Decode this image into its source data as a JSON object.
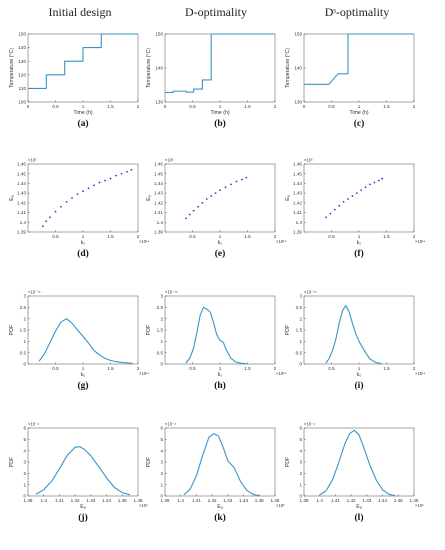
{
  "column_titles": [
    "Initial design",
    "D-optimality",
    "Dˢ-optimality"
  ],
  "chart_data": [
    {
      "id": "a",
      "panel_label": "(a)",
      "type": "line",
      "style": "step",
      "color": "#3a93c8",
      "xlabel": "Time (h)",
      "ylabel": "Temperature (°C)",
      "xlim": [
        0,
        2
      ],
      "ylim": [
        100,
        150
      ],
      "xticks": [
        0,
        0.5,
        1,
        1.5,
        2
      ],
      "xtick_labels": [
        "0",
        "0.5",
        "1",
        "1.5",
        "2"
      ],
      "yticks": [
        100,
        110,
        120,
        130,
        140,
        150
      ],
      "ytick_labels": [
        "100",
        "110",
        "120",
        "130",
        "140",
        "150"
      ],
      "x": [
        0,
        0.333,
        0.333,
        0.667,
        0.667,
        1.0,
        1.0,
        1.333,
        1.333,
        2.0
      ],
      "y": [
        110,
        110,
        120,
        120,
        130,
        130,
        140,
        140,
        150,
        150
      ]
    },
    {
      "id": "b",
      "panel_label": "(b)",
      "type": "line",
      "style": "step",
      "color": "#3a93c8",
      "xlabel": "Time (h)",
      "ylabel": "Temperature (°C)",
      "xlim": [
        0,
        2
      ],
      "ylim": [
        130,
        150
      ],
      "xticks": [
        0,
        0.5,
        1,
        1.5,
        2
      ],
      "xtick_labels": [
        "0",
        "0.5",
        "1",
        "1.5",
        "2"
      ],
      "yticks": [
        130,
        140,
        150
      ],
      "ytick_labels": [
        "130",
        "140",
        "150"
      ],
      "x": [
        0,
        0.15,
        0.15,
        0.38,
        0.38,
        0.52,
        0.52,
        0.68,
        0.68,
        0.84,
        0.84,
        2.0
      ],
      "y": [
        132.8,
        132.8,
        133.2,
        133.2,
        132.9,
        132.9,
        133.8,
        133.8,
        136.5,
        136.5,
        150,
        150
      ]
    },
    {
      "id": "c",
      "panel_label": "(c)",
      "type": "line",
      "style": "step",
      "color": "#3a93c8",
      "xlabel": "Time (h)",
      "ylabel": "Temperature (°C)",
      "xlim": [
        0,
        2
      ],
      "ylim": [
        130,
        150
      ],
      "xticks": [
        0,
        0.5,
        1,
        1.5,
        2
      ],
      "xtick_labels": [
        "0",
        "0.5",
        "1",
        "1.5",
        "2"
      ],
      "yticks": [
        130,
        140,
        150
      ],
      "ytick_labels": [
        "130",
        "140",
        "150"
      ],
      "x": [
        0,
        0.45,
        0.45,
        0.62,
        0.62,
        0.8,
        0.8,
        2.0
      ],
      "y": [
        135.2,
        135.2,
        135.2,
        138.3,
        138.3,
        138.3,
        150,
        150
      ]
    },
    {
      "id": "d",
      "panel_label": "(d)",
      "type": "scatter",
      "color": "#3b3bc8",
      "xlabel": "k₀",
      "ylabel": "Eₐ",
      "x_exponent": "×10¹⁴",
      "y_exponent": "×10⁵",
      "xlim": [
        0,
        2
      ],
      "ylim": [
        1.39,
        1.46
      ],
      "xticks": [
        0.5,
        1,
        1.5,
        2
      ],
      "xtick_labels": [
        "0.5",
        "1",
        "1.5",
        "2"
      ],
      "yticks": [
        1.39,
        1.4,
        1.41,
        1.42,
        1.43,
        1.44,
        1.45,
        1.46
      ],
      "ytick_labels": [
        "1.39",
        "1.4",
        "1.41",
        "1.42",
        "1.43",
        "1.44",
        "1.45",
        "1.46"
      ],
      "x": [
        0.27,
        0.33,
        0.4,
        0.5,
        0.6,
        0.7,
        0.8,
        0.9,
        1.0,
        1.1,
        1.2,
        1.3,
        1.4,
        1.5,
        1.6,
        1.7,
        1.8,
        1.88
      ],
      "y": [
        1.396,
        1.401,
        1.405,
        1.411,
        1.416,
        1.421,
        1.425,
        1.429,
        1.432,
        1.435,
        1.438,
        1.441,
        1.443,
        1.445,
        1.448,
        1.45,
        1.452,
        1.454
      ]
    },
    {
      "id": "e",
      "panel_label": "(e)",
      "type": "scatter",
      "color": "#3b3bc8",
      "xlabel": "k₀",
      "ylabel": "Eₐ",
      "x_exponent": "×10¹⁴",
      "y_exponent": "×10⁵",
      "xlim": [
        0,
        2
      ],
      "ylim": [
        1.39,
        1.46
      ],
      "xticks": [
        0.5,
        1,
        1.5,
        2
      ],
      "xtick_labels": [
        "0.5",
        "1",
        "1.5",
        "2"
      ],
      "yticks": [
        1.39,
        1.4,
        1.41,
        1.42,
        1.43,
        1.44,
        1.45,
        1.46
      ],
      "ytick_labels": [
        "1.39",
        "1.4",
        "1.41",
        "1.42",
        "1.43",
        "1.44",
        "1.45",
        "1.46"
      ],
      "x": [
        0.38,
        0.45,
        0.52,
        0.6,
        0.68,
        0.76,
        0.84,
        0.92,
        1.0,
        1.1,
        1.2,
        1.3,
        1.4,
        1.48
      ],
      "y": [
        1.404,
        1.408,
        1.412,
        1.416,
        1.42,
        1.424,
        1.427,
        1.43,
        1.433,
        1.436,
        1.439,
        1.442,
        1.444,
        1.446
      ]
    },
    {
      "id": "f",
      "panel_label": "(f)",
      "type": "scatter",
      "color": "#3b3bc8",
      "xlabel": "k₀",
      "ylabel": "Eₐ",
      "x_exponent": "×10¹⁴",
      "y_exponent": "×10⁵",
      "xlim": [
        0,
        2
      ],
      "ylim": [
        1.39,
        1.46
      ],
      "xticks": [
        0.5,
        1,
        1.5,
        2
      ],
      "xtick_labels": [
        "0.5",
        "1",
        "1.5",
        "2"
      ],
      "yticks": [
        1.39,
        1.4,
        1.41,
        1.42,
        1.43,
        1.44,
        1.45,
        1.46
      ],
      "ytick_labels": [
        "1.39",
        "1.4",
        "1.41",
        "1.42",
        "1.43",
        "1.44",
        "1.45",
        "1.46"
      ],
      "x": [
        0.4,
        0.48,
        0.56,
        0.64,
        0.72,
        0.8,
        0.88,
        0.96,
        1.04,
        1.12,
        1.2,
        1.28,
        1.36,
        1.42
      ],
      "y": [
        1.405,
        1.409,
        1.413,
        1.417,
        1.421,
        1.424,
        1.427,
        1.43,
        1.433,
        1.436,
        1.439,
        1.441,
        1.443,
        1.445
      ]
    },
    {
      "id": "g",
      "panel_label": "(g)",
      "type": "line",
      "color": "#3a93c8",
      "xlabel": "k₀",
      "ylabel": "PDF",
      "x_exponent": "×10¹⁴",
      "y_exponent": "×10⁻¹⁴",
      "xlim": [
        0,
        2
      ],
      "ylim": [
        0,
        3
      ],
      "xticks": [
        0.5,
        1,
        1.5,
        2
      ],
      "xtick_labels": [
        "0.5",
        "1",
        "1.5",
        "2"
      ],
      "yticks": [
        0,
        0.5,
        1,
        1.5,
        2,
        2.5,
        3
      ],
      "ytick_labels": [
        "0",
        "0.5",
        "1",
        "1.5",
        "2",
        "2.5",
        "3"
      ],
      "x": [
        0.2,
        0.3,
        0.4,
        0.5,
        0.6,
        0.7,
        0.8,
        0.9,
        1.0,
        1.1,
        1.2,
        1.3,
        1.4,
        1.5,
        1.6,
        1.7,
        1.8,
        1.9
      ],
      "y": [
        0.12,
        0.45,
        0.95,
        1.45,
        1.85,
        2.0,
        1.8,
        1.5,
        1.22,
        0.92,
        0.6,
        0.4,
        0.25,
        0.16,
        0.1,
        0.07,
        0.05,
        0.03
      ]
    },
    {
      "id": "h",
      "panel_label": "(h)",
      "type": "line",
      "color": "#3a93c8",
      "xlabel": "k₀",
      "ylabel": "PDF",
      "x_exponent": "×10¹⁴",
      "y_exponent": "×10⁻¹⁴",
      "xlim": [
        0,
        2
      ],
      "ylim": [
        0,
        3
      ],
      "xticks": [
        0.5,
        1,
        1.5,
        2
      ],
      "xtick_labels": [
        "0.5",
        "1",
        "1.5",
        "2"
      ],
      "yticks": [
        0,
        0.5,
        1,
        1.5,
        2,
        2.5,
        3
      ],
      "ytick_labels": [
        "0",
        "0.5",
        "1",
        "1.5",
        "2",
        "2.5",
        "3"
      ],
      "x": [
        0.38,
        0.45,
        0.52,
        0.58,
        0.64,
        0.7,
        0.76,
        0.82,
        0.88,
        0.94,
        1.0,
        1.06,
        1.12,
        1.2,
        1.28,
        1.36,
        1.44,
        1.5
      ],
      "y": [
        0.05,
        0.25,
        0.7,
        1.4,
        2.15,
        2.5,
        2.42,
        2.3,
        1.85,
        1.3,
        1.05,
        0.95,
        0.6,
        0.25,
        0.1,
        0.04,
        0.02,
        0.0
      ]
    },
    {
      "id": "i",
      "panel_label": "(i)",
      "type": "line",
      "color": "#3a93c8",
      "xlabel": "k₀",
      "ylabel": "PDF",
      "x_exponent": "×10¹⁴",
      "y_exponent": "×10⁻¹⁴",
      "xlim": [
        0,
        2
      ],
      "ylim": [
        0,
        3
      ],
      "xticks": [
        0.5,
        1,
        1.5,
        2
      ],
      "xtick_labels": [
        "0.5",
        "1",
        "1.5",
        "2"
      ],
      "yticks": [
        0,
        0.5,
        1,
        1.5,
        2,
        2.5,
        3
      ],
      "ytick_labels": [
        "0",
        "0.5",
        "1",
        "1.5",
        "2",
        "2.5",
        "3"
      ],
      "x": [
        0.4,
        0.46,
        0.52,
        0.58,
        0.64,
        0.7,
        0.76,
        0.82,
        0.88,
        0.94,
        1.0,
        1.06,
        1.12,
        1.2,
        1.3,
        1.42
      ],
      "y": [
        0.05,
        0.25,
        0.6,
        1.1,
        1.8,
        2.35,
        2.58,
        2.3,
        1.8,
        1.35,
        1.0,
        0.75,
        0.5,
        0.22,
        0.07,
        0.0
      ]
    },
    {
      "id": "j",
      "panel_label": "(j)",
      "type": "line",
      "color": "#3a93c8",
      "xlabel": "Eₐ",
      "ylabel": "PDF",
      "x_exponent": "×10⁵",
      "y_exponent": "×10⁻⁴",
      "xlim": [
        1.39,
        1.46
      ],
      "ylim": [
        0,
        6
      ],
      "xticks": [
        1.39,
        1.4,
        1.41,
        1.42,
        1.43,
        1.44,
        1.45,
        1.46
      ],
      "xtick_labels": [
        "1.39",
        "1.4",
        "1.41",
        "1.42",
        "1.43",
        "1.44",
        "1.45",
        "1.46"
      ],
      "yticks": [
        0,
        1,
        2,
        3,
        4,
        5,
        6
      ],
      "ytick_labels": [
        "0",
        "1",
        "2",
        "3",
        "4",
        "5",
        "6"
      ],
      "x": [
        1.395,
        1.4,
        1.405,
        1.41,
        1.415,
        1.42,
        1.423,
        1.426,
        1.43,
        1.435,
        1.44,
        1.445,
        1.45,
        1.455
      ],
      "y": [
        0.15,
        0.55,
        1.3,
        2.4,
        3.6,
        4.3,
        4.35,
        4.1,
        3.55,
        2.6,
        1.6,
        0.75,
        0.3,
        0.1
      ]
    },
    {
      "id": "k",
      "panel_label": "(k)",
      "type": "line",
      "color": "#3a93c8",
      "xlabel": "Eₐ",
      "ylabel": "PDF",
      "x_exponent": "×10⁵",
      "y_exponent": "×10⁻⁴",
      "xlim": [
        1.39,
        1.46
      ],
      "ylim": [
        0,
        6
      ],
      "xticks": [
        1.39,
        1.4,
        1.41,
        1.42,
        1.43,
        1.44,
        1.45,
        1.46
      ],
      "xtick_labels": [
        "1.39",
        "1.4",
        "1.41",
        "1.42",
        "1.43",
        "1.44",
        "1.45",
        "1.46"
      ],
      "yticks": [
        0,
        1,
        2,
        3,
        4,
        5,
        6
      ],
      "ytick_labels": [
        "0",
        "1",
        "2",
        "3",
        "4",
        "5",
        "6"
      ],
      "x": [
        1.402,
        1.406,
        1.41,
        1.414,
        1.418,
        1.421,
        1.424,
        1.427,
        1.43,
        1.434,
        1.438,
        1.442,
        1.446,
        1.45
      ],
      "y": [
        0.1,
        0.6,
        1.8,
        3.6,
        5.2,
        5.5,
        5.3,
        4.3,
        3.1,
        2.5,
        1.3,
        0.5,
        0.15,
        0.03
      ]
    },
    {
      "id": "l",
      "panel_label": "(l)",
      "type": "line",
      "color": "#3a93c8",
      "xlabel": "Eₐ",
      "ylabel": "PDF",
      "x_exponent": "×10⁵",
      "y_exponent": "×10⁻⁴",
      "xlim": [
        1.39,
        1.46
      ],
      "ylim": [
        0,
        6
      ],
      "xticks": [
        1.39,
        1.4,
        1.41,
        1.42,
        1.43,
        1.44,
        1.45,
        1.46
      ],
      "xtick_labels": [
        "1.39",
        "1.4",
        "1.41",
        "1.42",
        "1.43",
        "1.44",
        "1.45",
        "1.46"
      ],
      "yticks": [
        0,
        1,
        2,
        3,
        4,
        5,
        6
      ],
      "ytick_labels": [
        "0",
        "1",
        "2",
        "3",
        "4",
        "5",
        "6"
      ],
      "x": [
        1.4,
        1.404,
        1.408,
        1.412,
        1.416,
        1.419,
        1.422,
        1.425,
        1.428,
        1.432,
        1.436,
        1.44,
        1.444,
        1.448
      ],
      "y": [
        0.1,
        0.45,
        1.4,
        2.9,
        4.6,
        5.5,
        5.8,
        5.4,
        4.3,
        2.7,
        1.4,
        0.55,
        0.15,
        0.03
      ]
    }
  ]
}
